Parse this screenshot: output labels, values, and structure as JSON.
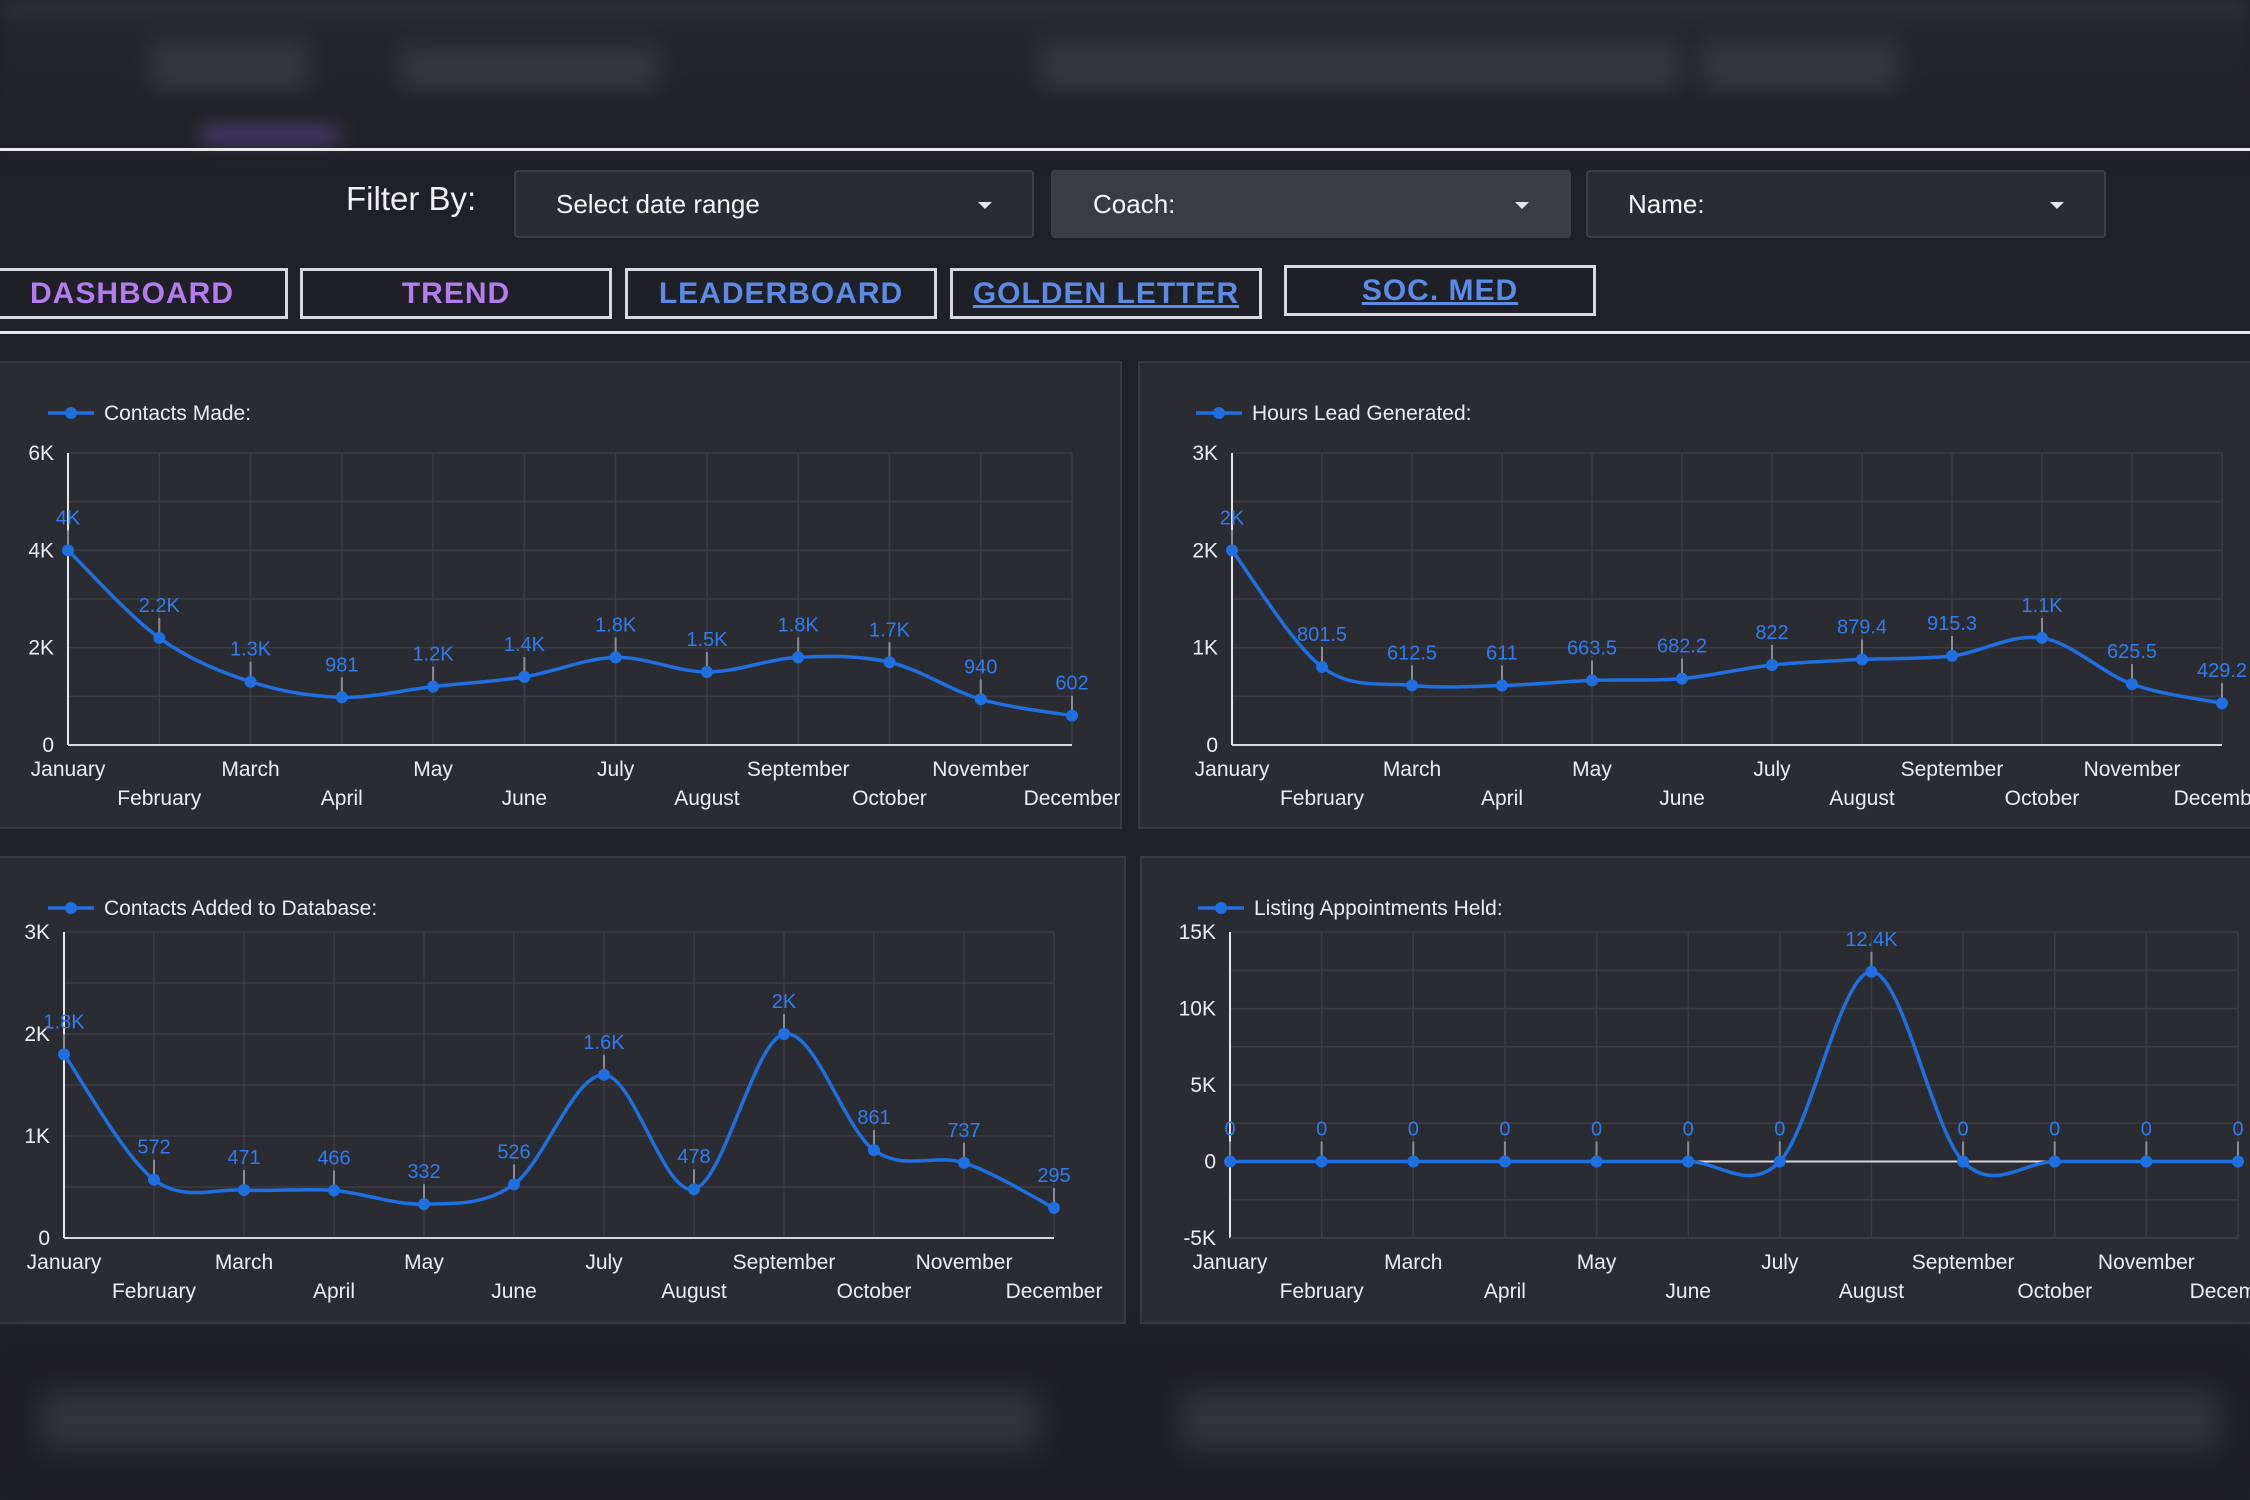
{
  "filter": {
    "label": "Filter By:",
    "date_range": "Select date range",
    "coach": "Coach:",
    "name": "Name:"
  },
  "nav": [
    {
      "label": "DASHBOARD",
      "color": "#b57bf0"
    },
    {
      "label": "TREND",
      "color": "#b57bf0"
    },
    {
      "label": "LEADERBOARD",
      "color": "#5b8be6"
    },
    {
      "label": "GOLDEN LETTER",
      "color": "#5b8be6"
    },
    {
      "label": "SOC. MED",
      "color": "#5b8be6"
    }
  ],
  "colors": {
    "series": "#1f6fe0",
    "label": "#2f7cf0"
  },
  "chart_data": [
    {
      "type": "line",
      "legend": "Contacts Made:",
      "categories": [
        "January",
        "February",
        "March",
        "April",
        "May",
        "June",
        "July",
        "August",
        "September",
        "October",
        "November",
        "December"
      ],
      "values": [
        4000,
        2200,
        1300,
        981,
        1200,
        1400,
        1800,
        1500,
        1800,
        1700,
        940,
        602
      ],
      "data_labels": [
        "4K",
        "2.2K",
        "1.3K",
        "981",
        "1.2K",
        "1.4K",
        "1.8K",
        "1.5K",
        "1.8K",
        "1.7K",
        "940",
        "602"
      ],
      "yticks": [
        "0",
        "2K",
        "4K",
        "6K"
      ],
      "ylim": [
        0,
        6000
      ]
    },
    {
      "type": "line",
      "legend": "Hours Lead Generated:",
      "categories": [
        "January",
        "February",
        "March",
        "April",
        "May",
        "June",
        "July",
        "August",
        "September",
        "October",
        "November",
        "December"
      ],
      "values": [
        2000,
        801.5,
        612.5,
        611,
        663.5,
        682.2,
        822,
        879.4,
        915.3,
        1100,
        625.5,
        429.2
      ],
      "data_labels": [
        "2K",
        "801.5",
        "612.5",
        "611",
        "663.5",
        "682.2",
        "822",
        "879.4",
        "915.3",
        "1.1K",
        "625.5",
        "429.2"
      ],
      "yticks": [
        "0",
        "1K",
        "2K",
        "3K"
      ],
      "ylim": [
        0,
        3000
      ]
    },
    {
      "type": "line",
      "legend": "Contacts Added to Database:",
      "categories": [
        "January",
        "February",
        "March",
        "April",
        "May",
        "June",
        "July",
        "August",
        "September",
        "October",
        "November",
        "December"
      ],
      "values": [
        1800,
        572,
        471,
        466,
        332,
        526,
        1600,
        478,
        2000,
        861,
        737,
        295
      ],
      "data_labels": [
        "1.8K",
        "572",
        "471",
        "466",
        "332",
        "526",
        "1.6K",
        "478",
        "2K",
        "861",
        "737",
        "295"
      ],
      "yticks": [
        "0",
        "1K",
        "2K",
        "3K"
      ],
      "ylim": [
        0,
        3000
      ]
    },
    {
      "type": "line",
      "legend": "Listing Appointments Held:",
      "categories": [
        "January",
        "February",
        "March",
        "April",
        "May",
        "June",
        "July",
        "August",
        "September",
        "October",
        "November",
        "December"
      ],
      "values": [
        0,
        0,
        0,
        0,
        0,
        0,
        0,
        12400,
        0,
        0,
        0,
        0
      ],
      "data_labels": [
        "0",
        "0",
        "0",
        "0",
        "0",
        "0",
        "0",
        "12.4K",
        "0",
        "0",
        "0",
        "0"
      ],
      "yticks": [
        "-5K",
        "0",
        "5K",
        "10K",
        "15K"
      ],
      "ylim": [
        -5000,
        15000
      ]
    }
  ]
}
